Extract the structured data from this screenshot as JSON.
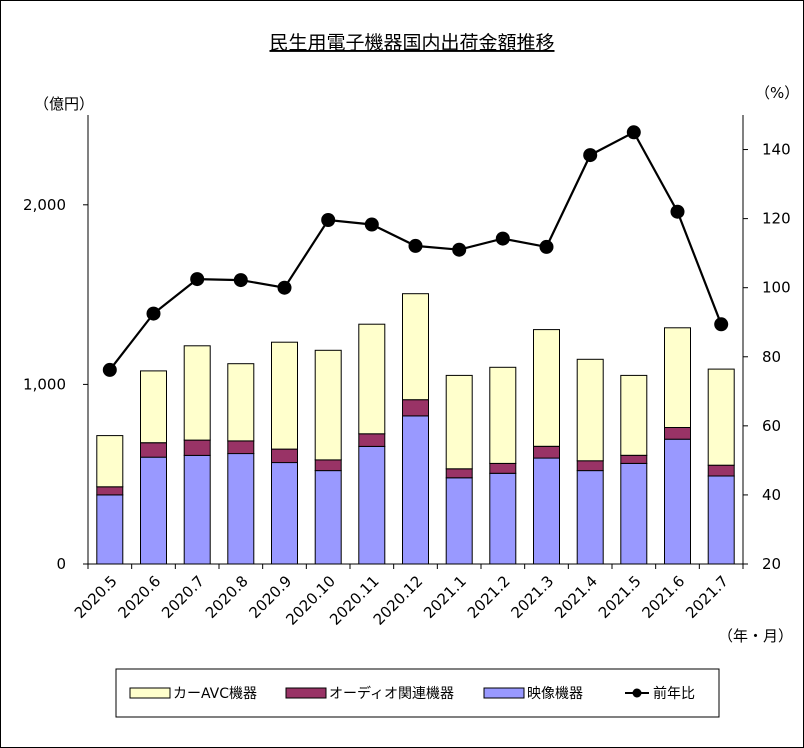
{
  "chart_data": {
    "type": "bar",
    "title": "民生用電子機器国内出荷金額推移",
    "y_left_unit": "（億円）",
    "y_right_unit": "（%）",
    "x_unit": "（年・月）",
    "categories": [
      "2020.5",
      "2020.6",
      "2020.7",
      "2020.8",
      "2020.9",
      "2020.10",
      "2020.11",
      "2020.12",
      "2021.1",
      "2021.2",
      "2021.3",
      "2021.4",
      "2021.5",
      "2021.6",
      "2021.7"
    ],
    "y_left": {
      "min": 0,
      "max": 2500,
      "ticks": [
        0,
        1000,
        2000
      ],
      "tick_labels": [
        "0",
        "1,000",
        "2,000"
      ]
    },
    "y_right": {
      "min": 20,
      "max": 150,
      "ticks": [
        20,
        40,
        60,
        80,
        100,
        120,
        140
      ],
      "tick_labels": [
        "20",
        "40",
        "60",
        "80",
        "100",
        "120",
        "140"
      ]
    },
    "stacked": true,
    "series": [
      {
        "name": "映像機器",
        "kind": "bar",
        "axis": "left",
        "color": "#9999ff",
        "values": [
          385,
          595,
          605,
          615,
          565,
          520,
          655,
          825,
          480,
          505,
          590,
          520,
          560,
          695,
          490
        ]
      },
      {
        "name": "オーディオ関連機器",
        "kind": "bar",
        "axis": "left",
        "color": "#993366",
        "values": [
          45,
          80,
          85,
          70,
          75,
          60,
          70,
          90,
          50,
          55,
          65,
          55,
          45,
          65,
          60
        ]
      },
      {
        "name": "カーAVC機器",
        "kind": "bar",
        "axis": "left",
        "color": "#ffffcc",
        "values": [
          285,
          400,
          525,
          430,
          595,
          610,
          610,
          590,
          520,
          535,
          650,
          565,
          445,
          555,
          535
        ]
      },
      {
        "name": "前年比",
        "kind": "line",
        "axis": "right",
        "color": "#000000",
        "values": [
          76.2,
          92.5,
          102.5,
          102.2,
          100.0,
          119.6,
          118.3,
          112.1,
          111.0,
          114.2,
          111.8,
          138.4,
          145.0,
          122.0,
          89.4
        ]
      }
    ],
    "legend": {
      "position": "bottom",
      "order": [
        "カーAVC機器",
        "オーディオ関連機器",
        "映像機器",
        "前年比"
      ]
    },
    "grid": false
  }
}
